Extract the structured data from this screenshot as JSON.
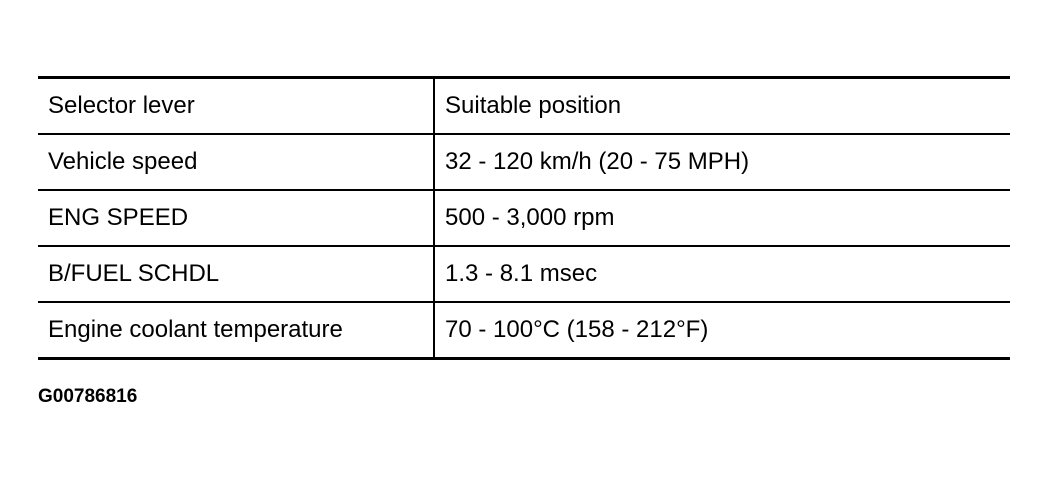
{
  "table": {
    "rows": [
      [
        "Selector lever",
        "Suitable position"
      ],
      [
        "Vehicle speed",
        "32 - 120 km/h (20 - 75 MPH)"
      ],
      [
        "ENG SPEED",
        "500 - 3,000 rpm"
      ],
      [
        "B/FUEL SCHDL",
        "1.3 - 8.1 msec"
      ],
      [
        "Engine coolant temperature",
        "70 - 100°C (158 - 212°F)"
      ]
    ]
  },
  "figure_id": "G00786816"
}
